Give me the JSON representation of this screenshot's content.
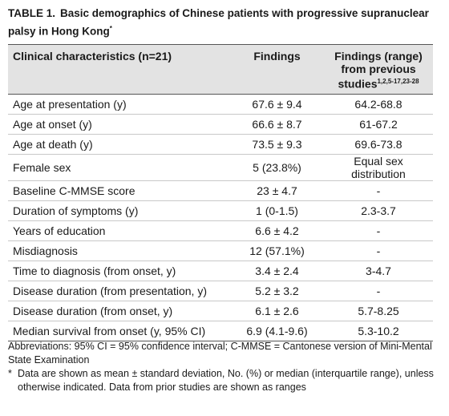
{
  "title": {
    "label": "TABLE 1.",
    "text": "Basic demographics of Chinese patients with progressive supranuclear palsy in Hong Kong",
    "mark": "*"
  },
  "table": {
    "headers": [
      "Clinical characteristics (n=21)",
      "Findings",
      {
        "text": "Findings (range) from previous studies",
        "sup": "1,2,5-17,23-28"
      }
    ],
    "rows": [
      [
        "Age at presentation (y)",
        "67.6 ± 9.4",
        "64.2-68.8"
      ],
      [
        "Age at onset (y)",
        "66.6 ± 8.7",
        "61-67.2"
      ],
      [
        "Age at death (y)",
        "73.5 ± 9.3",
        "69.6-73.8"
      ],
      [
        "Female sex",
        "5 (23.8%)",
        "Equal sex distribution"
      ],
      [
        "Baseline C-MMSE score",
        "23 ± 4.7",
        "-"
      ],
      [
        "Duration of symptoms (y)",
        "1 (0-1.5)",
        "2.3-3.7"
      ],
      [
        "Years of education",
        "6.6 ± 4.2",
        "-"
      ],
      [
        "Misdiagnosis",
        "12 (57.1%)",
        "-"
      ],
      [
        "Time to diagnosis (from onset, y)",
        "3.4 ± 2.4",
        "3-4.7"
      ],
      [
        "Disease duration (from presentation, y)",
        "5.2 ± 3.2",
        "-"
      ],
      [
        "Disease duration (from onset, y)",
        "6.1 ± 2.6",
        "5.7-8.25"
      ],
      [
        "Median survival from onset (y, 95% CI)",
        "6.9 (4.1-9.6)",
        "5.3-10.2"
      ]
    ]
  },
  "footnotes": {
    "abbreviations": "Abbreviations: 95% CI = 95% confidence interval; C-MMSE = Cantonese version of Mini-Mental State Examination",
    "mark": "*",
    "note": "Data are shown as mean ± standard deviation, No. (%) or median (interquartile range), unless otherwise indicated. Data from prior studies are shown as ranges"
  }
}
